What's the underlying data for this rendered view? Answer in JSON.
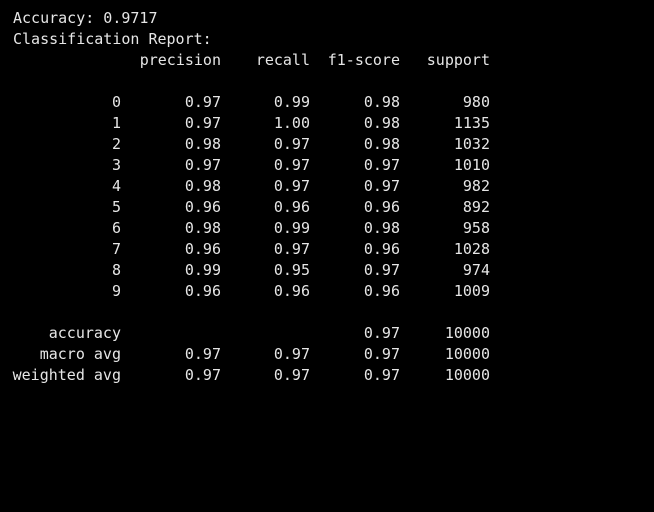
{
  "accuracy_line": "Accuracy: 0.9717",
  "report_title": "Classification Report:",
  "headers": {
    "precision": "precision",
    "recall": "recall",
    "f1": "f1-score",
    "support": "support"
  },
  "rows": [
    {
      "label": "0",
      "precision": "0.97",
      "recall": "0.99",
      "f1": "0.98",
      "support": "980"
    },
    {
      "label": "1",
      "precision": "0.97",
      "recall": "1.00",
      "f1": "0.98",
      "support": "1135"
    },
    {
      "label": "2",
      "precision": "0.98",
      "recall": "0.97",
      "f1": "0.98",
      "support": "1032"
    },
    {
      "label": "3",
      "precision": "0.97",
      "recall": "0.97",
      "f1": "0.97",
      "support": "1010"
    },
    {
      "label": "4",
      "precision": "0.98",
      "recall": "0.97",
      "f1": "0.97",
      "support": "982"
    },
    {
      "label": "5",
      "precision": "0.96",
      "recall": "0.96",
      "f1": "0.96",
      "support": "892"
    },
    {
      "label": "6",
      "precision": "0.98",
      "recall": "0.99",
      "f1": "0.98",
      "support": "958"
    },
    {
      "label": "7",
      "precision": "0.96",
      "recall": "0.97",
      "f1": "0.96",
      "support": "1028"
    },
    {
      "label": "8",
      "precision": "0.99",
      "recall": "0.95",
      "f1": "0.97",
      "support": "974"
    },
    {
      "label": "9",
      "precision": "0.96",
      "recall": "0.96",
      "f1": "0.96",
      "support": "1009"
    }
  ],
  "summary": [
    {
      "label": "accuracy",
      "precision": "",
      "recall": "",
      "f1": "0.97",
      "support": "10000"
    },
    {
      "label": "macro avg",
      "precision": "0.97",
      "recall": "0.97",
      "f1": "0.97",
      "support": "10000"
    },
    {
      "label": "weighted avg",
      "precision": "0.97",
      "recall": "0.97",
      "f1": "0.97",
      "support": "10000"
    }
  ],
  "colors": {
    "background": "#000000",
    "text": "#e6e6e6"
  }
}
